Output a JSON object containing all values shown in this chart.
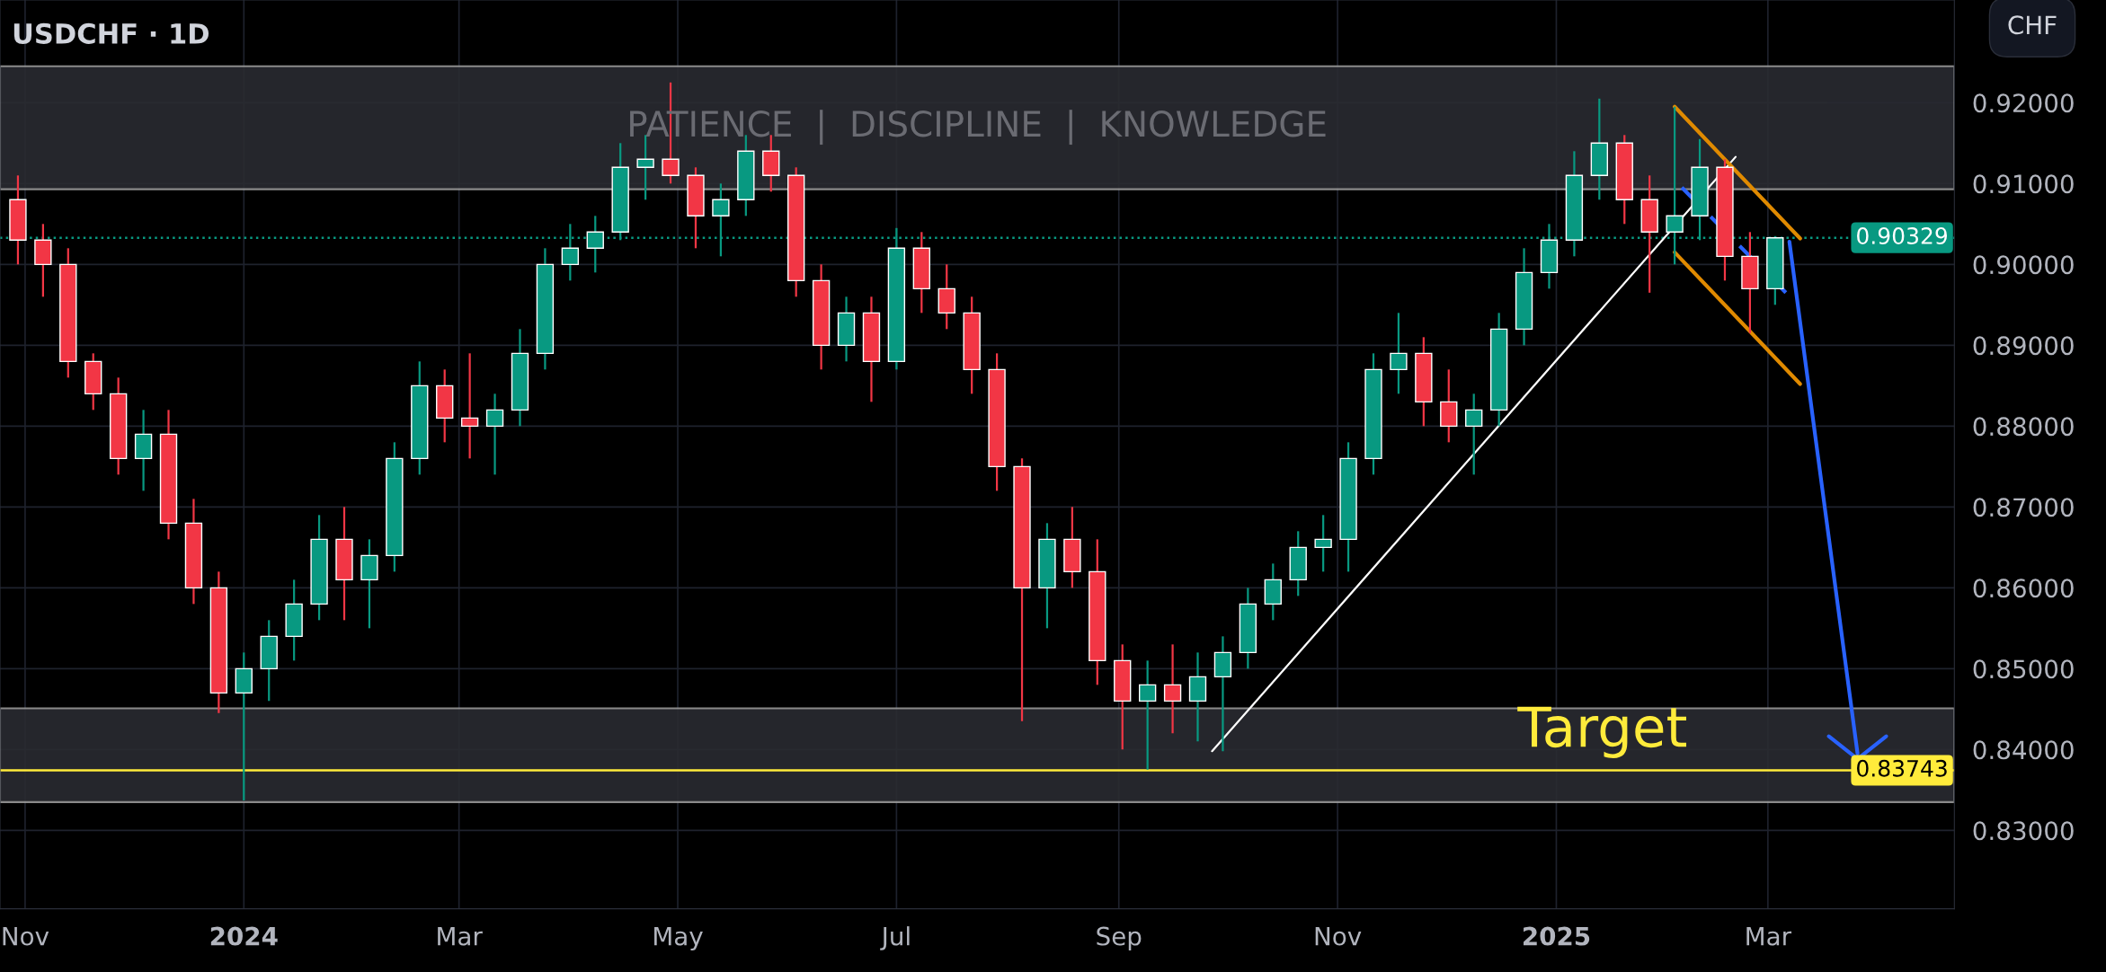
{
  "chart_data": {
    "type": "candlestick",
    "title": "USDCHF · 1D",
    "ylabel": "CHF",
    "annotations": [
      "PATIENCE  |  DISCIPLINE  |  KNOWLEDGE",
      "Target"
    ],
    "xlim": [
      "2023-10-25",
      "2025-04-22"
    ],
    "ylim": [
      0.8203,
      0.9327
    ],
    "xticks": [
      {
        "value": "2023-11-01",
        "label": "Nov"
      },
      {
        "value": "2024-01-01",
        "label": "2024"
      },
      {
        "value": "2024-03-01",
        "label": "Mar"
      },
      {
        "value": "2024-05-01",
        "label": "May"
      },
      {
        "value": "2024-07-01",
        "label": "Jul"
      },
      {
        "value": "2024-09-01",
        "label": "Sep"
      },
      {
        "value": "2024-11-01",
        "label": "Nov"
      },
      {
        "value": "2025-01-01",
        "label": "2025"
      },
      {
        "value": "2025-03-01",
        "label": "Mar"
      }
    ],
    "yticks": [
      {
        "value": 0.83,
        "label": "0.83000"
      },
      {
        "value": 0.84,
        "label": "0.84000"
      },
      {
        "value": 0.85,
        "label": "0.85000"
      },
      {
        "value": 0.86,
        "label": "0.86000"
      },
      {
        "value": 0.87,
        "label": "0.87000"
      },
      {
        "value": 0.88,
        "label": "0.88000"
      },
      {
        "value": 0.89,
        "label": "0.89000"
      },
      {
        "value": 0.9,
        "label": "0.90000"
      },
      {
        "value": 0.91,
        "label": "0.91000"
      },
      {
        "value": 0.92,
        "label": "0.92000"
      }
    ],
    "grid": true,
    "legend": false,
    "x": [
      "2023-10-30",
      "2023-11-06",
      "2023-11-13",
      "2023-11-20",
      "2023-11-27",
      "2023-12-04",
      "2023-12-11",
      "2023-12-18",
      "2023-12-25",
      "2024-01-01",
      "2024-01-08",
      "2024-01-15",
      "2024-01-22",
      "2024-01-29",
      "2024-02-05",
      "2024-02-12",
      "2024-02-19",
      "2024-02-26",
      "2024-03-04",
      "2024-03-11",
      "2024-03-18",
      "2024-03-25",
      "2024-04-01",
      "2024-04-08",
      "2024-04-15",
      "2024-04-22",
      "2024-04-29",
      "2024-05-06",
      "2024-05-13",
      "2024-05-20",
      "2024-05-27",
      "2024-06-03",
      "2024-06-10",
      "2024-06-17",
      "2024-06-24",
      "2024-07-01",
      "2024-07-08",
      "2024-07-15",
      "2024-07-22",
      "2024-07-29",
      "2024-08-05",
      "2024-08-12",
      "2024-08-19",
      "2024-08-26",
      "2024-09-02",
      "2024-09-09",
      "2024-09-16",
      "2024-09-23",
      "2024-09-30",
      "2024-10-07",
      "2024-10-14",
      "2024-10-21",
      "2024-10-28",
      "2024-11-04",
      "2024-11-11",
      "2024-11-18",
      "2024-11-25",
      "2024-12-02",
      "2024-12-09",
      "2024-12-16",
      "2024-12-23",
      "2024-12-30",
      "2025-01-06",
      "2025-01-13",
      "2025-01-20",
      "2025-01-27",
      "2025-02-03",
      "2025-02-10",
      "2025-02-17",
      "2025-02-24",
      "2025-03-03"
    ],
    "ohlc": [
      [
        0.908,
        0.911,
        0.9,
        0.903
      ],
      [
        0.903,
        0.905,
        0.896,
        0.9
      ],
      [
        0.9,
        0.902,
        0.886,
        0.888
      ],
      [
        0.888,
        0.889,
        0.882,
        0.884
      ],
      [
        0.884,
        0.886,
        0.874,
        0.876
      ],
      [
        0.876,
        0.882,
        0.872,
        0.879
      ],
      [
        0.879,
        0.882,
        0.866,
        0.868
      ],
      [
        0.868,
        0.871,
        0.858,
        0.86
      ],
      [
        0.86,
        0.862,
        0.8445,
        0.847
      ],
      [
        0.847,
        0.852,
        0.8337,
        0.85
      ],
      [
        0.85,
        0.856,
        0.846,
        0.854
      ],
      [
        0.854,
        0.861,
        0.851,
        0.858
      ],
      [
        0.858,
        0.869,
        0.856,
        0.866
      ],
      [
        0.866,
        0.87,
        0.856,
        0.861
      ],
      [
        0.861,
        0.866,
        0.855,
        0.864
      ],
      [
        0.864,
        0.878,
        0.862,
        0.876
      ],
      [
        0.876,
        0.888,
        0.874,
        0.885
      ],
      [
        0.885,
        0.887,
        0.878,
        0.881
      ],
      [
        0.881,
        0.889,
        0.876,
        0.88
      ],
      [
        0.88,
        0.884,
        0.874,
        0.882
      ],
      [
        0.882,
        0.892,
        0.88,
        0.889
      ],
      [
        0.889,
        0.902,
        0.887,
        0.9
      ],
      [
        0.9,
        0.905,
        0.898,
        0.902
      ],
      [
        0.902,
        0.906,
        0.899,
        0.904
      ],
      [
        0.904,
        0.915,
        0.903,
        0.912
      ],
      [
        0.912,
        0.916,
        0.908,
        0.913
      ],
      [
        0.913,
        0.9225,
        0.91,
        0.911
      ],
      [
        0.911,
        0.912,
        0.902,
        0.906
      ],
      [
        0.906,
        0.91,
        0.901,
        0.908
      ],
      [
        0.908,
        0.916,
        0.906,
        0.914
      ],
      [
        0.914,
        0.916,
        0.909,
        0.911
      ],
      [
        0.911,
        0.912,
        0.896,
        0.898
      ],
      [
        0.898,
        0.9,
        0.887,
        0.89
      ],
      [
        0.89,
        0.896,
        0.888,
        0.894
      ],
      [
        0.894,
        0.896,
        0.883,
        0.888
      ],
      [
        0.888,
        0.9045,
        0.887,
        0.902
      ],
      [
        0.902,
        0.904,
        0.894,
        0.897
      ],
      [
        0.897,
        0.9,
        0.892,
        0.894
      ],
      [
        0.894,
        0.896,
        0.884,
        0.887
      ],
      [
        0.887,
        0.889,
        0.872,
        0.875
      ],
      [
        0.875,
        0.876,
        0.8435,
        0.86
      ],
      [
        0.86,
        0.868,
        0.855,
        0.866
      ],
      [
        0.866,
        0.87,
        0.86,
        0.862
      ],
      [
        0.862,
        0.866,
        0.848,
        0.851
      ],
      [
        0.851,
        0.853,
        0.84,
        0.846
      ],
      [
        0.846,
        0.851,
        0.8375,
        0.848
      ],
      [
        0.848,
        0.853,
        0.842,
        0.846
      ],
      [
        0.846,
        0.852,
        0.841,
        0.849
      ],
      [
        0.849,
        0.854,
        0.8398,
        0.852
      ],
      [
        0.852,
        0.86,
        0.85,
        0.858
      ],
      [
        0.858,
        0.863,
        0.856,
        0.861
      ],
      [
        0.861,
        0.867,
        0.859,
        0.865
      ],
      [
        0.865,
        0.869,
        0.862,
        0.866
      ],
      [
        0.866,
        0.878,
        0.862,
        0.876
      ],
      [
        0.876,
        0.889,
        0.874,
        0.887
      ],
      [
        0.887,
        0.894,
        0.884,
        0.889
      ],
      [
        0.889,
        0.891,
        0.88,
        0.883
      ],
      [
        0.883,
        0.887,
        0.878,
        0.88
      ],
      [
        0.88,
        0.884,
        0.874,
        0.882
      ],
      [
        0.882,
        0.894,
        0.88,
        0.892
      ],
      [
        0.892,
        0.902,
        0.89,
        0.899
      ],
      [
        0.899,
        0.905,
        0.897,
        0.903
      ],
      [
        0.903,
        0.914,
        0.901,
        0.911
      ],
      [
        0.911,
        0.9205,
        0.908,
        0.915
      ],
      [
        0.915,
        0.916,
        0.905,
        0.908
      ],
      [
        0.908,
        0.911,
        0.8965,
        0.904
      ],
      [
        0.904,
        0.9195,
        0.9,
        0.906
      ],
      [
        0.906,
        0.9155,
        0.903,
        0.912
      ],
      [
        0.912,
        0.913,
        0.898,
        0.901
      ],
      [
        0.901,
        0.904,
        0.8915,
        0.897
      ],
      [
        0.897,
        0.9035,
        0.895,
        0.90329
      ]
    ],
    "colors": [
      "#f23645",
      "#f23645",
      "#f23645",
      "#f23645",
      "#f23645",
      "#089981",
      "#f23645",
      "#f23645",
      "#f23645",
      "#089981",
      "#089981",
      "#089981",
      "#089981",
      "#f23645",
      "#089981",
      "#089981",
      "#089981",
      "#f23645",
      "#f23645",
      "#089981",
      "#089981",
      "#089981",
      "#089981",
      "#089981",
      "#089981",
      "#089981",
      "#f23645",
      "#f23645",
      "#089981",
      "#089981",
      "#f23645",
      "#f23645",
      "#f23645",
      "#089981",
      "#f23645",
      "#089981",
      "#f23645",
      "#f23645",
      "#f23645",
      "#f23645",
      "#f23645",
      "#089981",
      "#f23645",
      "#f23645",
      "#f23645",
      "#089981",
      "#f23645",
      "#089981",
      "#089981",
      "#089981",
      "#089981",
      "#089981",
      "#089981",
      "#089981",
      "#089981",
      "#089981",
      "#f23645",
      "#f23645",
      "#089981",
      "#089981",
      "#089981",
      "#089981",
      "#089981",
      "#089981",
      "#f23645",
      "#f23645",
      "#089981",
      "#089981",
      "#f23645",
      "#f23645",
      "#089981"
    ],
    "series": [
      {
        "type": "line",
        "color": "#ffffff",
        "line_style": "solid",
        "x": [
          "2024-09-27",
          "2025-02-20"
        ],
        "values": [
          0.8398,
          0.9133
        ]
      },
      {
        "type": "line",
        "color": "#e08a00",
        "line_style": "solid",
        "x": [
          "2025-02-03",
          "2025-03-10"
        ],
        "values": [
          0.9195,
          0.9032
        ]
      },
      {
        "type": "line",
        "color": "#e08a00",
        "line_style": "solid",
        "x": [
          "2025-02-03",
          "2025-03-10"
        ],
        "values": [
          0.9015,
          0.8852
        ]
      },
      {
        "type": "line",
        "color": "#2962ff",
        "line_style": "dashed",
        "x": [
          "2025-02-05",
          "2025-03-06"
        ],
        "values": [
          0.9095,
          0.8965
        ]
      },
      {
        "type": "line",
        "color": "#2962ff",
        "line_style": "solid",
        "x": [
          "2025-03-07",
          "2025-03-26"
        ],
        "values": [
          0.9028,
          0.8395
        ]
      }
    ],
    "ref_lines": [
      {
        "axis": "y",
        "value": 0.90329,
        "label": "0.90329",
        "color": "#089981",
        "line_style": "dotted"
      },
      {
        "axis": "y",
        "value": 0.83743,
        "label": "0.83743",
        "color": "#ffeb3b",
        "line_style": "solid"
      }
    ],
    "bands": [
      {
        "axis": "y",
        "from": 0.9093,
        "to": 0.9245,
        "color": "#2a2b31"
      },
      {
        "axis": "y",
        "from": 0.8335,
        "to": 0.8451,
        "color": "#2a2b31"
      }
    ]
  }
}
